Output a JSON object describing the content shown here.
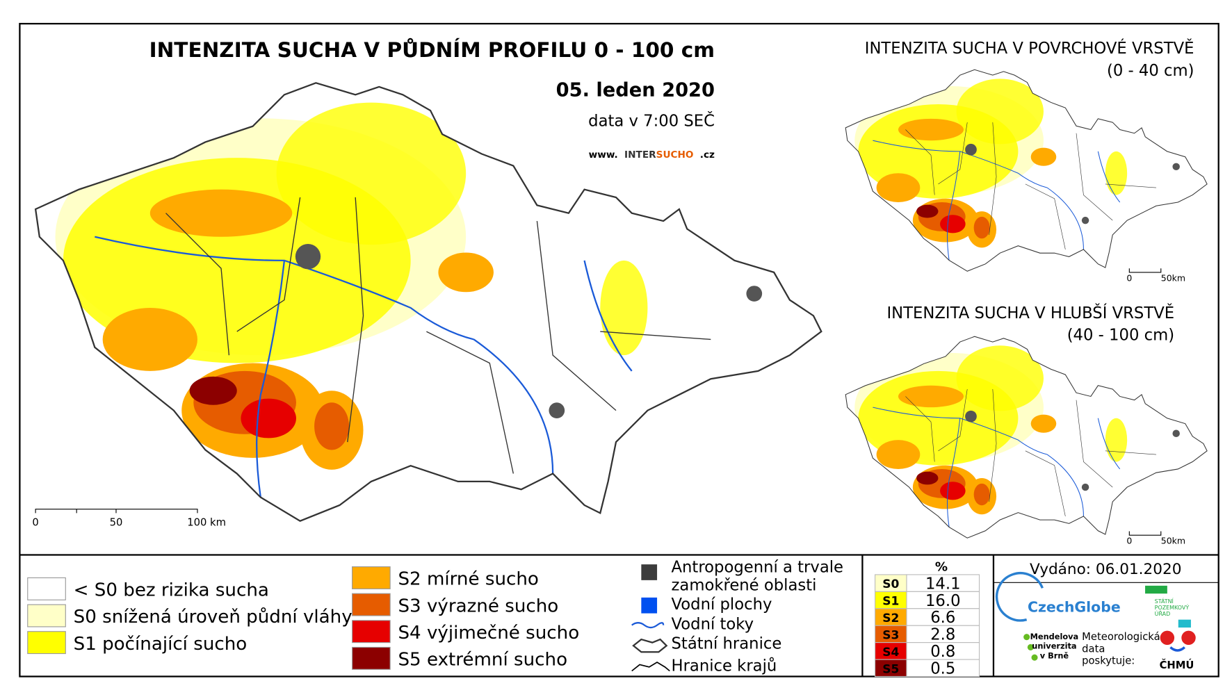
{
  "main_title": "INTENZITA SUCHA V PŮDNÍM PROFILU 0 - 100 cm",
  "date": "05. leden 2020",
  "data_time": "data v 7:00 SEČ",
  "website": {
    "prefix": "www.",
    "inter": "INTER",
    "sucho": "SUCHO",
    "suffix": ".cz"
  },
  "main_scale": [
    "0",
    "50",
    "100 km"
  ],
  "inset_surface": {
    "title": "INTENZITA SUCHA V POVRCHOVÉ VRSTVĚ",
    "subtitle": "(0 - 40 cm)",
    "scale": [
      "0",
      "50km"
    ]
  },
  "inset_deep": {
    "title": "INTENZITA SUCHA V HLUBŠÍ VRSTVĚ",
    "subtitle": "(40 - 100 cm)",
    "scale": [
      "0",
      "50km"
    ]
  },
  "legend": {
    "classes": [
      {
        "label": "< S0 bez rizika sucha",
        "color": "#ffffff"
      },
      {
        "label": "S0 snížená úroveň půdní vláhy",
        "color": "#ffffc8"
      },
      {
        "label": "S1 počínající sucho",
        "color": "#ffff00"
      },
      {
        "label": "S2 mírné sucho",
        "color": "#ffaa00"
      },
      {
        "label": "S3 výrazné sucho",
        "color": "#e65c00"
      },
      {
        "label": "S4 výjimečné sucho",
        "color": "#e60000"
      },
      {
        "label": "S5 extrémní sucho",
        "color": "#8c0000"
      }
    ],
    "symbols": {
      "anthropogenic": [
        "Antropogenní a trvale",
        "zamokřené oblasti"
      ],
      "water_bodies": "Vodní plochy",
      "rivers": "Vodní toky",
      "state_border": "Státní hranice",
      "region_border": "Hranice krajů"
    }
  },
  "stats": {
    "header": "%",
    "rows": [
      {
        "code": "S0",
        "value": "14.1",
        "color": "#ffffc8"
      },
      {
        "code": "S1",
        "value": "16.0",
        "color": "#ffff00"
      },
      {
        "code": "S2",
        "value": "6.6",
        "color": "#ffaa00"
      },
      {
        "code": "S3",
        "value": "2.8",
        "color": "#e65c00"
      },
      {
        "code": "S4",
        "value": "0.8",
        "color": "#e60000"
      },
      {
        "code": "S5",
        "value": "0.5",
        "color": "#8c0000"
      }
    ]
  },
  "issued": "Vydáno: 06.01.2020",
  "providers": {
    "czechglobe": "CzechGlobe",
    "spu": [
      "STÁTNÍ",
      "POZEMKOVÝ",
      "ÚŘAD"
    ],
    "mendelu": [
      "Mendelova",
      "univerzita",
      "v Brně"
    ],
    "meteo": [
      "Meteorologická",
      "data",
      "poskytuje:"
    ],
    "chmu": "ČHMÚ"
  }
}
